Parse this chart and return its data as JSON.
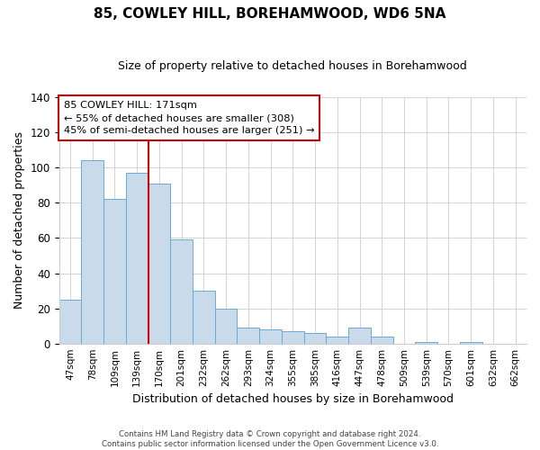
{
  "title": "85, COWLEY HILL, BOREHAMWOOD, WD6 5NA",
  "subtitle": "Size of property relative to detached houses in Borehamwood",
  "xlabel": "Distribution of detached houses by size in Borehamwood",
  "ylabel": "Number of detached properties",
  "bar_labels": [
    "47sqm",
    "78sqm",
    "109sqm",
    "139sqm",
    "170sqm",
    "201sqm",
    "232sqm",
    "262sqm",
    "293sqm",
    "324sqm",
    "355sqm",
    "385sqm",
    "416sqm",
    "447sqm",
    "478sqm",
    "509sqm",
    "539sqm",
    "570sqm",
    "601sqm",
    "632sqm",
    "662sqm"
  ],
  "bar_values": [
    25,
    104,
    82,
    97,
    91,
    59,
    30,
    20,
    9,
    8,
    7,
    6,
    4,
    9,
    4,
    0,
    1,
    0,
    1,
    0,
    0
  ],
  "bar_color": "#c9daea",
  "bar_edge_color": "#6aaad4",
  "marker_x_label": "170sqm",
  "marker_line_color": "#cc0000",
  "annotation_title": "85 COWLEY HILL: 171sqm",
  "annotation_line1": "← 55% of detached houses are smaller (308)",
  "annotation_line2": "45% of semi-detached houses are larger (251) →",
  "annotation_box_edge_color": "#cc0000",
  "ylim": [
    0,
    140
  ],
  "yticks": [
    0,
    20,
    40,
    60,
    80,
    100,
    120,
    140
  ],
  "footer1": "Contains HM Land Registry data © Crown copyright and database right 2024.",
  "footer2": "Contains public sector information licensed under the Open Government Licence v3.0.",
  "bg_color": "#ffffff",
  "grid_color": "#cccccc"
}
